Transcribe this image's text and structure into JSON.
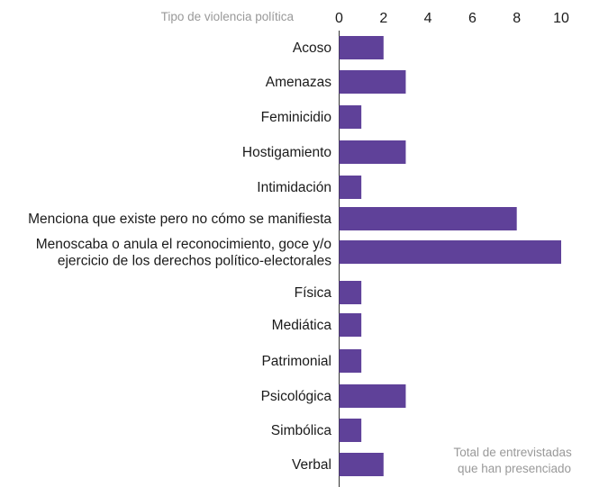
{
  "chart_data": {
    "type": "bar",
    "orientation": "horizontal",
    "category_axis_title": "Tipo de violencia política",
    "value_axis_title": [
      "Total de entrevistadas",
      "que han presenciado"
    ],
    "xlim": [
      0,
      10
    ],
    "ticks": [
      0,
      2,
      4,
      6,
      8,
      10
    ],
    "tick_labels": [
      "0",
      "2",
      "4",
      "6",
      "8",
      "10"
    ],
    "grid": false,
    "bar_color": "#5f4199",
    "categories": [
      [
        "Acoso"
      ],
      [
        "Amenazas"
      ],
      [
        "Feminicidio"
      ],
      [
        "Hostigamiento"
      ],
      [
        "Intimidación"
      ],
      [
        "Menciona que existe pero no cómo se manifiesta"
      ],
      [
        "Menoscaba o anula el reconocimiento, goce y/o",
        "ejercicio de los derechos político-electorales"
      ],
      [
        "Física"
      ],
      [
        "Mediática"
      ],
      [
        "Patrimonial"
      ],
      [
        "Psicológica"
      ],
      [
        "Simbólica"
      ],
      [
        "Verbal"
      ]
    ],
    "values": [
      2,
      3,
      1,
      3,
      1,
      8,
      10,
      1,
      1,
      1,
      3,
      1,
      2
    ]
  }
}
